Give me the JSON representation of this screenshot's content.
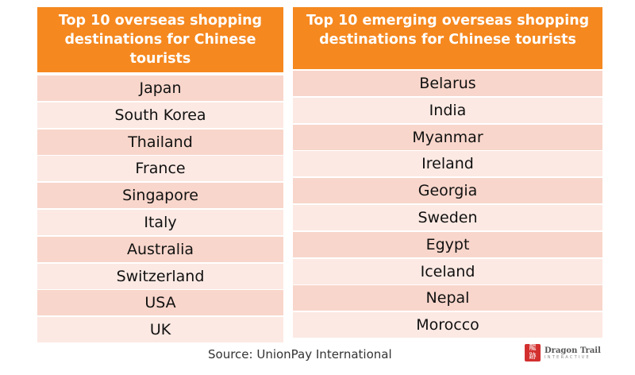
{
  "left_table": {
    "title": "Top 10 overseas shopping destinations for Chinese tourists",
    "rows": [
      "Japan",
      "South Korea",
      "Thailand",
      "France",
      "Singapore",
      "Italy",
      "Australia",
      "Switzerland",
      "USA",
      "UK"
    ]
  },
  "right_table": {
    "title": "Top 10 emerging overseas shopping destinations for Chinese tourists",
    "rows": [
      "Belarus",
      "India",
      "Myanmar",
      "Ireland",
      "Georgia",
      "Sweden",
      "Egypt",
      "Iceland",
      "Nepal",
      "Morocco"
    ]
  },
  "source": "Source: UnionPay International",
  "logo": {
    "name": "Dragon Trail",
    "sub": "INTERACTIVE",
    "icon": "dragon-trail-seal-icon"
  },
  "colors": {
    "header": "#F5881F",
    "row_dark": "#F8D6CB",
    "row_light": "#FCE9E3"
  }
}
